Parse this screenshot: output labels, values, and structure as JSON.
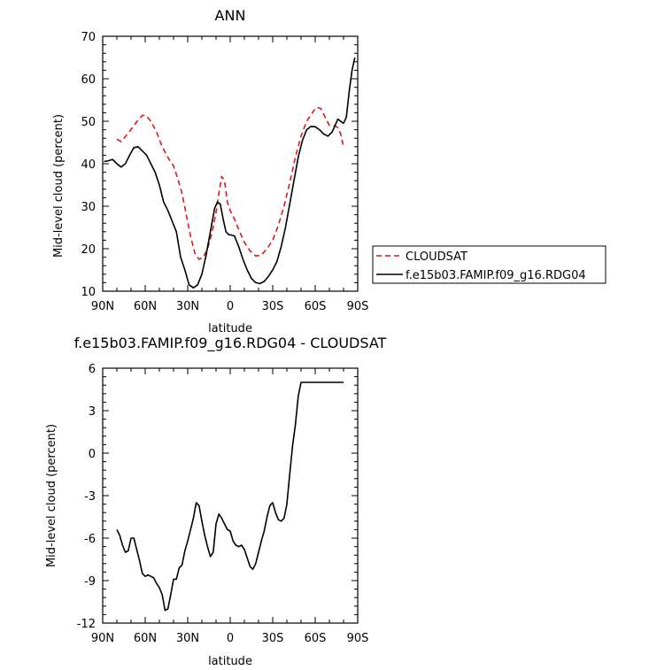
{
  "chart_data": [
    {
      "type": "line",
      "title": "ANN",
      "xlabel": "latitude",
      "ylabel": "Mid-level cloud (percent)",
      "xlim": [
        90,
        -90
      ],
      "ylim": [
        10,
        70
      ],
      "x_ticks": [
        90,
        60,
        30,
        0,
        -30,
        -60,
        -90
      ],
      "x_tick_labels": [
        "90N",
        "60N",
        "30N",
        "0",
        "30S",
        "60S",
        "90S"
      ],
      "y_ticks": [
        10,
        20,
        30,
        40,
        50,
        60,
        70
      ],
      "y_tick_labels": [
        "10",
        "20",
        "30",
        "40",
        "50",
        "60",
        "70"
      ],
      "legend_position": "right",
      "series": [
        {
          "name": "CLOUDSAT",
          "color": "#e0171c",
          "dash": "dashed",
          "x": [
            80,
            77,
            73,
            69,
            65,
            62,
            59,
            56,
            52,
            48,
            44,
            40,
            37,
            34,
            31,
            28,
            25,
            22,
            19,
            16,
            13,
            10,
            8,
            6,
            4,
            2,
            0,
            -3,
            -6,
            -10,
            -14,
            -18,
            -22,
            -26,
            -30,
            -34,
            -38,
            -42,
            -46,
            -50,
            -54,
            -58,
            -61,
            -64,
            -67,
            -70,
            -73,
            -76,
            -78,
            -80
          ],
          "values": [
            45.8,
            45.2,
            46.8,
            48.5,
            50.3,
            51.4,
            51.2,
            50.0,
            47.5,
            44.0,
            41.5,
            39.5,
            36.5,
            33.0,
            28.0,
            23.0,
            19.0,
            17.5,
            18.0,
            20.0,
            23.5,
            28.5,
            33.0,
            37.0,
            36.0,
            31.0,
            29.0,
            27.0,
            24.5,
            21.5,
            19.5,
            18.3,
            18.5,
            20.0,
            22.0,
            25.5,
            30.0,
            35.5,
            41.5,
            46.5,
            50.0,
            52.0,
            53.3,
            53.0,
            51.0,
            49.0,
            49.0,
            48.5,
            47.0,
            44.0
          ]
        },
        {
          "name": "f.e15b03.FAMIP.f09_g16.RDG04",
          "color": "#000000",
          "dash": "solid",
          "x": [
            89,
            86,
            83,
            80,
            77,
            74,
            71,
            68,
            65,
            62,
            59,
            56,
            53,
            50,
            47,
            44,
            41,
            38,
            35,
            32,
            29,
            26,
            23,
            20,
            17,
            14,
            11,
            9,
            7,
            5,
            3,
            1,
            -1,
            -3,
            -6,
            -9,
            -12,
            -15,
            -18,
            -21,
            -24,
            -27,
            -30,
            -33,
            -36,
            -39,
            -42,
            -45,
            -48,
            -51,
            -54,
            -57,
            -60,
            -63,
            -66,
            -69,
            -72,
            -74,
            -76,
            -78,
            -80,
            -82,
            -84,
            -86,
            -88
          ],
          "values": [
            40.5,
            40.7,
            41.0,
            40.0,
            39.2,
            40.0,
            42.0,
            43.8,
            44.0,
            43.0,
            42.0,
            40.0,
            38.0,
            35.0,
            31.0,
            29.0,
            26.5,
            24.0,
            18.0,
            15.0,
            11.5,
            10.8,
            11.5,
            14.0,
            18.5,
            24.0,
            29.5,
            31.0,
            30.5,
            27.0,
            24.0,
            23.3,
            23.2,
            23.0,
            20.5,
            17.5,
            15.0,
            13.0,
            12.0,
            11.8,
            12.3,
            13.5,
            15.0,
            17.0,
            20.5,
            25.0,
            30.5,
            36.0,
            41.5,
            45.5,
            48.0,
            48.8,
            48.7,
            48.0,
            47.0,
            46.5,
            47.5,
            49.0,
            50.5,
            50.0,
            49.5,
            51.0,
            57.0,
            62.0,
            65.0
          ]
        }
      ]
    },
    {
      "type": "line",
      "title": "f.e15b03.FAMIP.f09_g16.RDG04 - CLOUDSAT",
      "xlabel": "latitude",
      "ylabel": "Mid-level cloud (percent)",
      "xlim": [
        90,
        -90
      ],
      "ylim": [
        -12,
        6
      ],
      "x_ticks": [
        90,
        60,
        30,
        0,
        -30,
        -60,
        -90
      ],
      "x_tick_labels": [
        "90N",
        "60N",
        "30N",
        "0",
        "30S",
        "60S",
        "90S"
      ],
      "y_ticks": [
        -12,
        -9,
        -6,
        -3,
        0,
        3,
        6
      ],
      "y_tick_labels": [
        "-12",
        "-9",
        "-6",
        "-3",
        "0",
        "3",
        "6"
      ],
      "series": [
        {
          "color": "#000000",
          "dash": "solid",
          "x": [
            80,
            78,
            76,
            74,
            72,
            70,
            68,
            66,
            64,
            62,
            60,
            58,
            56,
            54,
            52,
            50,
            48,
            46,
            44,
            42,
            40,
            38,
            36,
            34,
            32,
            30,
            28,
            26,
            24,
            22,
            20,
            18,
            16,
            14,
            12,
            10,
            8,
            6,
            4,
            2,
            0,
            -2,
            -4,
            -6,
            -8,
            -10,
            -12,
            -14,
            -16,
            -18,
            -20,
            -22,
            -24,
            -26,
            -28,
            -30,
            -32,
            -34,
            -36,
            -38,
            -40,
            -42,
            -44,
            -46,
            -48,
            -50,
            -52,
            -54,
            -56,
            -58,
            -60,
            -62,
            -64,
            -66,
            -68,
            -70,
            -72,
            -74,
            -76,
            -78,
            -80
          ],
          "values": [
            -5.4,
            -5.8,
            -6.5,
            -7.0,
            -6.9,
            -6.0,
            -6.0,
            -6.8,
            -7.6,
            -8.5,
            -8.7,
            -8.6,
            -8.7,
            -8.8,
            -9.2,
            -9.5,
            -10.0,
            -11.1,
            -11.0,
            -10.0,
            -8.9,
            -8.9,
            -8.1,
            -7.9,
            -6.9,
            -6.2,
            -5.4,
            -4.6,
            -3.5,
            -3.7,
            -4.8,
            -5.8,
            -6.6,
            -7.3,
            -7.0,
            -5.0,
            -4.3,
            -4.6,
            -5.0,
            -5.4,
            -5.5,
            -6.2,
            -6.5,
            -6.6,
            -6.5,
            -6.8,
            -7.4,
            -8.0,
            -8.2,
            -7.8,
            -7.0,
            -6.2,
            -5.5,
            -4.5,
            -3.7,
            -3.5,
            -4.2,
            -4.7,
            -4.8,
            -4.6,
            -3.6,
            -1.5,
            0.5,
            2.0,
            4.0,
            5.0,
            5.0,
            5.0,
            5.0,
            5.0,
            5.0,
            5.0,
            5.0,
            5.0,
            5.0,
            5.0,
            5.0,
            5.0,
            5.0,
            5.0,
            5.0
          ]
        }
      ]
    }
  ]
}
